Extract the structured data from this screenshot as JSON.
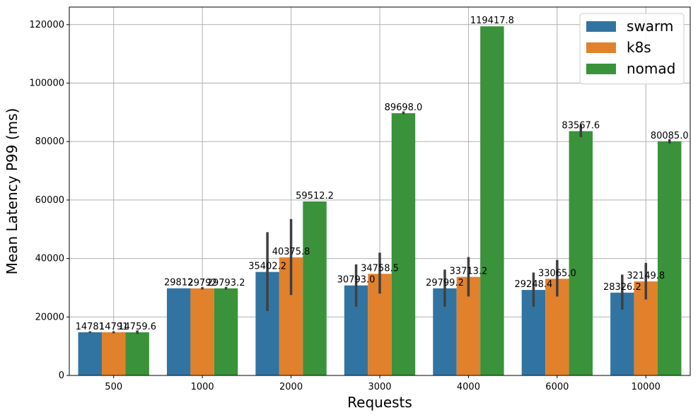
{
  "chart_data": {
    "type": "bar",
    "xlabel": "Requests",
    "ylabel": "Mean Latency P99 (ms)",
    "categories": [
      "500",
      "1000",
      "2000",
      "3000",
      "4000",
      "6000",
      "10000"
    ],
    "ylim": [
      0,
      126000
    ],
    "yticks": [
      0,
      20000,
      40000,
      60000,
      80000,
      100000,
      120000
    ],
    "grid": true,
    "legend_position": "top-right",
    "series": [
      {
        "name": "swarm",
        "color": "#3274a1",
        "values": [
          14781.0,
          29812.0,
          35402.2,
          30793.0,
          29799.2,
          29248.4,
          28326.2
        ],
        "labels": [
          "14781",
          "29812",
          "35402.2",
          "30793.0",
          "29799.2",
          "29248.4",
          "28326.2"
        ],
        "err_low": [
          14500,
          29812,
          22000,
          23500,
          23500,
          23500,
          22500
        ],
        "err_high": [
          15100,
          29812,
          49000,
          38000,
          36200,
          35200,
          34500
        ]
      },
      {
        "name": "k8s",
        "color": "#e1812c",
        "values": [
          14791.0,
          29792.0,
          40375.8,
          34758.5,
          33713.2,
          33065.0,
          32149.8
        ],
        "labels": [
          "14791",
          "29792",
          "40375.8",
          "34758.5",
          "33713.2",
          "33065.0",
          "32149.8"
        ],
        "err_low": [
          14400,
          29400,
          27500,
          28000,
          27000,
          27000,
          26000
        ],
        "err_high": [
          15100,
          30200,
          53500,
          42000,
          40500,
          39500,
          38500
        ]
      },
      {
        "name": "nomad",
        "color": "#3a923a",
        "values": [
          14759.6,
          29793.2,
          59512.2,
          89698.0,
          119417.8,
          83567.6,
          80085.0
        ],
        "labels": [
          "14759.6",
          "29793.2",
          "59512.2",
          "89698.0",
          "119417.8",
          "83567.6",
          "80085.0"
        ],
        "err_low": [
          14200,
          29400,
          59512.2,
          89300,
          119417.8,
          81500,
          79300
        ],
        "err_high": [
          15400,
          30300,
          59512.2,
          90300,
          119417.8,
          85600,
          80800
        ]
      }
    ]
  }
}
